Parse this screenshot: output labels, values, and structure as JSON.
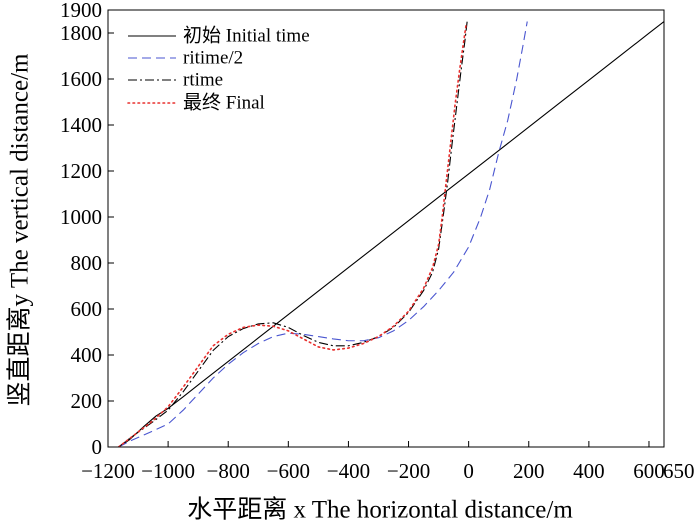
{
  "chart_data": {
    "type": "line",
    "xlabel": "水平距离 x The horizontal distance/m",
    "ylabel": "竖直距离y The vertical distance/m",
    "xlim": [
      -1200,
      650
    ],
    "ylim": [
      0,
      1900
    ],
    "grid": false,
    "legend_position": "top-left",
    "xticks": [
      {
        "value": -1200,
        "label": "−1200"
      },
      {
        "value": -1000,
        "label": "−1000"
      },
      {
        "value": -800,
        "label": "−800"
      },
      {
        "value": -600,
        "label": "−600"
      },
      {
        "value": -400,
        "label": "−400"
      },
      {
        "value": -200,
        "label": "−200"
      },
      {
        "value": 0,
        "label": "0"
      },
      {
        "value": 200,
        "label": "200"
      },
      {
        "value": 400,
        "label": "400"
      },
      {
        "value": 600,
        "label": "600"
      },
      {
        "value": 650,
        "label": "650"
      }
    ],
    "yticks": [
      {
        "value": 0,
        "label": "0"
      },
      {
        "value": 200,
        "label": "200"
      },
      {
        "value": 400,
        "label": "400"
      },
      {
        "value": 600,
        "label": "600"
      },
      {
        "value": 800,
        "label": "800"
      },
      {
        "value": 1000,
        "label": "1000"
      },
      {
        "value": 1200,
        "label": "1200"
      },
      {
        "value": 1400,
        "label": "1400"
      },
      {
        "value": 1600,
        "label": "1600"
      },
      {
        "value": 1800,
        "label": "1800"
      },
      {
        "value": 1900,
        "label": "1900"
      }
    ],
    "series": [
      {
        "name": "初始 Initial time",
        "style": "solid",
        "color": "#000000",
        "x": [
          -1165,
          -1130,
          -1080,
          -1040,
          -1000,
          -950,
          -900,
          -800,
          -700,
          -600,
          -500,
          -400,
          -300,
          -200,
          -100,
          0,
          100,
          200,
          300,
          400,
          500,
          600,
          650
        ],
        "y": [
          0,
          30,
          90,
          135,
          168,
          218,
          270,
          372,
          474,
          576,
          678,
          780,
          882,
          984,
          1086,
          1187,
          1289,
          1391,
          1493,
          1595,
          1697,
          1799,
          1850
        ]
      },
      {
        "name": "ritime/2",
        "style": "dashed",
        "color": "#4a56d0",
        "x": [
          -1165,
          -1120,
          -1050,
          -1000,
          -950,
          -900,
          -850,
          -800,
          -750,
          -700,
          -650,
          -600,
          -550,
          -500,
          -450,
          -400,
          -350,
          -300,
          -250,
          -200,
          -150,
          -100,
          -50,
          0,
          40,
          70,
          100,
          130,
          160,
          180,
          195
        ],
        "y": [
          0,
          30,
          70,
          100,
          160,
          230,
          300,
          360,
          410,
          450,
          480,
          495,
          490,
          480,
          470,
          462,
          462,
          475,
          505,
          550,
          610,
          680,
          760,
          870,
          1000,
          1120,
          1280,
          1420,
          1600,
          1740,
          1850
        ]
      },
      {
        "name": "rtime",
        "style": "dash-dot",
        "color": "#000000",
        "x": [
          -1165,
          -1120,
          -1050,
          -1000,
          -950,
          -900,
          -850,
          -800,
          -750,
          -700,
          -650,
          -600,
          -550,
          -500,
          -450,
          -400,
          -350,
          -300,
          -250,
          -200,
          -150,
          -120,
          -100,
          -85,
          -70,
          -55,
          -40,
          -25,
          -12,
          -5
        ],
        "y": [
          0,
          45,
          110,
          160,
          240,
          330,
          420,
          480,
          515,
          535,
          540,
          520,
          485,
          455,
          440,
          440,
          455,
          480,
          520,
          585,
          680,
          760,
          860,
          1000,
          1150,
          1320,
          1480,
          1640,
          1770,
          1850
        ]
      },
      {
        "name": "最终 Final",
        "style": "dotted",
        "color": "#e8302e",
        "x": [
          -1165,
          -1120,
          -1050,
          -1000,
          -950,
          -900,
          -850,
          -800,
          -750,
          -700,
          -650,
          -600,
          -550,
          -500,
          -450,
          -400,
          -350,
          -300,
          -250,
          -200,
          -150,
          -120,
          -100,
          -88,
          -75,
          -60,
          -45,
          -30,
          -17,
          -8
        ],
        "y": [
          0,
          45,
          115,
          175,
          260,
          350,
          440,
          490,
          520,
          530,
          525,
          505,
          470,
          435,
          422,
          430,
          450,
          480,
          525,
          590,
          690,
          780,
          880,
          1000,
          1150,
          1320,
          1490,
          1640,
          1760,
          1840
        ]
      }
    ]
  }
}
